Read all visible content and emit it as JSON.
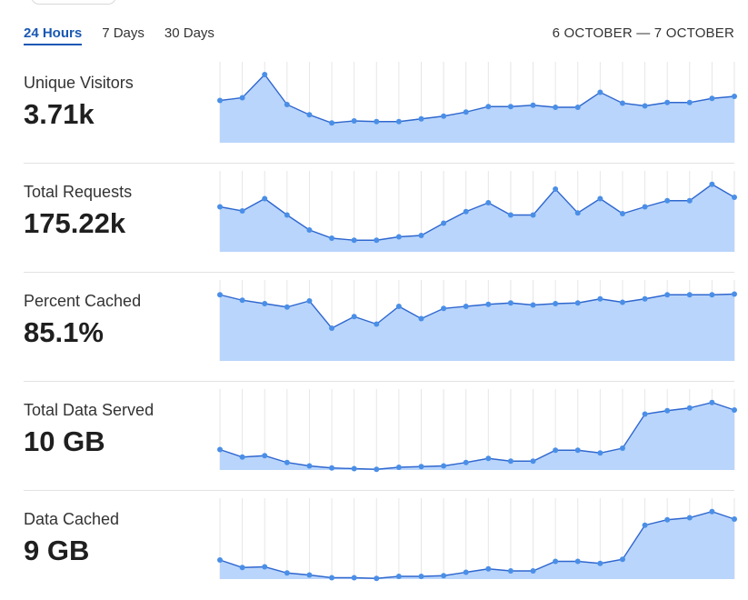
{
  "range_tabs": [
    {
      "label": "24 Hours",
      "active": true
    },
    {
      "label": "7 Days",
      "active": false
    },
    {
      "label": "30 Days",
      "active": false
    }
  ],
  "date_range": "6 OCTOBER — 7 OCTOBER",
  "colors": {
    "accent": "#1a58b3",
    "line": "#2f67cf",
    "dot": "#4a8fe7",
    "fill": "#b9d5fb",
    "grid": "#e6e6e6"
  },
  "metrics": [
    {
      "label": "Unique Visitors",
      "value": "3.71k"
    },
    {
      "label": "Total Requests",
      "value": "175.22k"
    },
    {
      "label": "Percent Cached",
      "value": "85.1%"
    },
    {
      "label": "Total Data Served",
      "value": "10 GB"
    },
    {
      "label": "Data Cached",
      "value": "9 GB"
    }
  ],
  "chart_data": [
    {
      "type": "area",
      "name": "Unique Visitors",
      "values": [
        0.62,
        0.66,
        1.0,
        0.56,
        0.41,
        0.29,
        0.32,
        0.31,
        0.31,
        0.35,
        0.39,
        0.45,
        0.53,
        0.53,
        0.55,
        0.52,
        0.52,
        0.74,
        0.58,
        0.54,
        0.59,
        0.59,
        0.65,
        0.68
      ]
    },
    {
      "type": "area",
      "name": "Total Requests",
      "values": [
        0.66,
        0.6,
        0.78,
        0.54,
        0.32,
        0.2,
        0.17,
        0.17,
        0.22,
        0.24,
        0.42,
        0.59,
        0.72,
        0.54,
        0.54,
        0.92,
        0.57,
        0.78,
        0.56,
        0.66,
        0.75,
        0.75,
        0.99,
        0.8
      ]
    },
    {
      "type": "area",
      "name": "Percent Cached",
      "values": [
        0.97,
        0.89,
        0.84,
        0.79,
        0.88,
        0.48,
        0.65,
        0.54,
        0.8,
        0.62,
        0.77,
        0.8,
        0.83,
        0.85,
        0.82,
        0.84,
        0.85,
        0.91,
        0.86,
        0.91,
        0.97,
        0.97,
        0.97,
        0.98
      ]
    },
    {
      "type": "area",
      "name": "Total Data Served",
      "values": [
        0.3,
        0.19,
        0.21,
        0.11,
        0.06,
        0.03,
        0.02,
        0.01,
        0.04,
        0.05,
        0.06,
        0.11,
        0.17,
        0.13,
        0.13,
        0.29,
        0.29,
        0.25,
        0.32,
        0.82,
        0.87,
        0.91,
        0.99,
        0.88
      ]
    },
    {
      "type": "area",
      "name": "Data Cached",
      "values": [
        0.28,
        0.17,
        0.18,
        0.09,
        0.06,
        0.02,
        0.02,
        0.01,
        0.04,
        0.04,
        0.05,
        0.1,
        0.15,
        0.12,
        0.12,
        0.26,
        0.26,
        0.23,
        0.29,
        0.79,
        0.87,
        0.9,
        0.99,
        0.88
      ]
    }
  ]
}
